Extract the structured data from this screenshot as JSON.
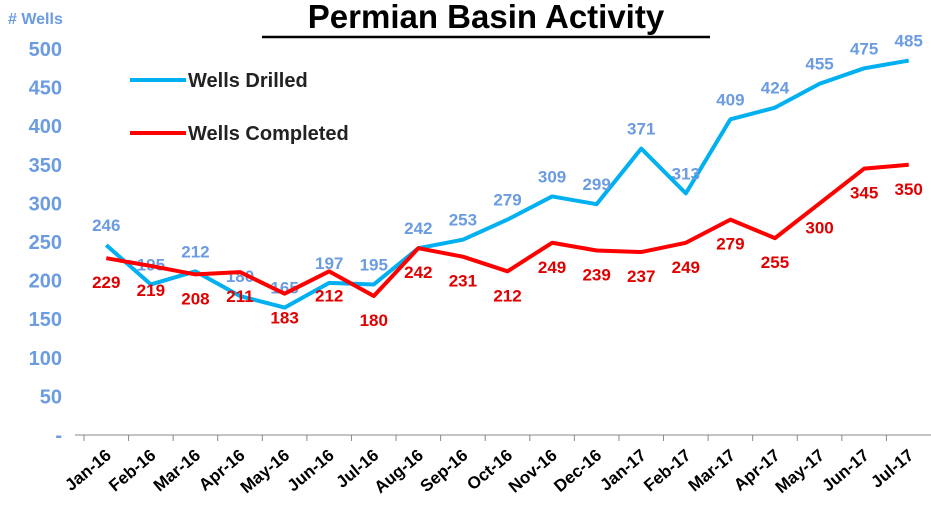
{
  "chart_data": {
    "type": "line",
    "title": "Permian Basin Activity",
    "y_axis_label": "# Wells",
    "categories": [
      "Jan-16",
      "Feb-16",
      "Mar-16",
      "Apr-16",
      "May-16",
      "Jun-16",
      "Jul-16",
      "Aug-16",
      "Sep-16",
      "Oct-16",
      "Nov-16",
      "Dec-16",
      "Jan-17",
      "Feb-17",
      "Mar-17",
      "Apr-17",
      "May-17",
      "Jun-17",
      "Jul-17"
    ],
    "series": [
      {
        "name": "Wells Drilled",
        "color": "#00B0F0",
        "label_color": "#6B9BE0",
        "values": [
          246,
          195,
          212,
          180,
          165,
          197,
          195,
          242,
          253,
          279,
          309,
          299,
          371,
          313,
          409,
          424,
          455,
          475,
          485
        ]
      },
      {
        "name": "Wells Completed",
        "color": "#FF0000",
        "label_color": "#E00000",
        "values": [
          229,
          219,
          208,
          211,
          183,
          212,
          180,
          242,
          231,
          212,
          249,
          239,
          237,
          249,
          279,
          255,
          300,
          345,
          350
        ]
      }
    ],
    "ylim": [
      0,
      500
    ],
    "yticks": [
      {
        "value": 0,
        "label": "-"
      },
      50,
      100,
      150,
      200,
      250,
      300,
      350,
      400,
      450,
      500
    ],
    "grid": false,
    "legend": "upper left"
  }
}
